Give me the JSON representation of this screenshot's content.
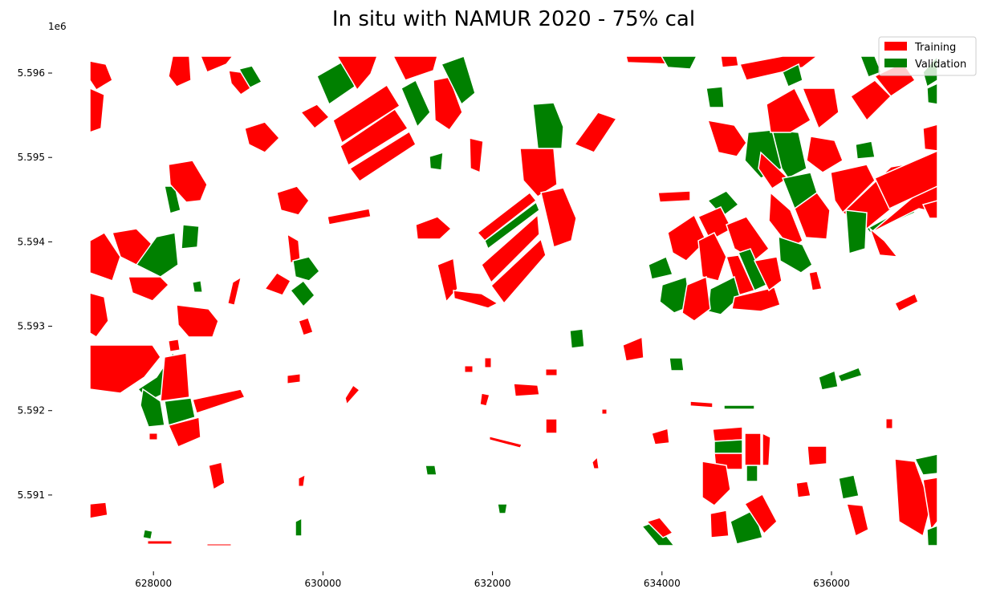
{
  "chart_data": {
    "type": "map",
    "title": "In situ with NAMUR 2020 - 75% cal",
    "x_ticks": [
      "628000",
      "630000",
      "632000",
      "634000",
      "636000"
    ],
    "x_tick_values": [
      628000,
      630000,
      632000,
      634000,
      636000
    ],
    "y_ticks": [
      "5.596",
      "5.595",
      "5.594",
      "5.593",
      "5.592",
      "5.591"
    ],
    "y_tick_values": [
      5.596,
      5.595,
      5.594,
      5.593,
      5.592,
      5.591
    ],
    "y_offset_label": "1e6",
    "xlim": [
      627250,
      637250
    ],
    "ylim": [
      5.5904,
      5.5962
    ],
    "legend": {
      "placement": "top-right",
      "entries": [
        {
          "label": "Training",
          "color": "#ff0000"
        },
        {
          "label": "Validation",
          "color": "#008000"
        }
      ]
    },
    "grid": false,
    "colors": {
      "training": "#ff0000",
      "validation": "#008000",
      "boundary": "#ffffff"
    }
  }
}
